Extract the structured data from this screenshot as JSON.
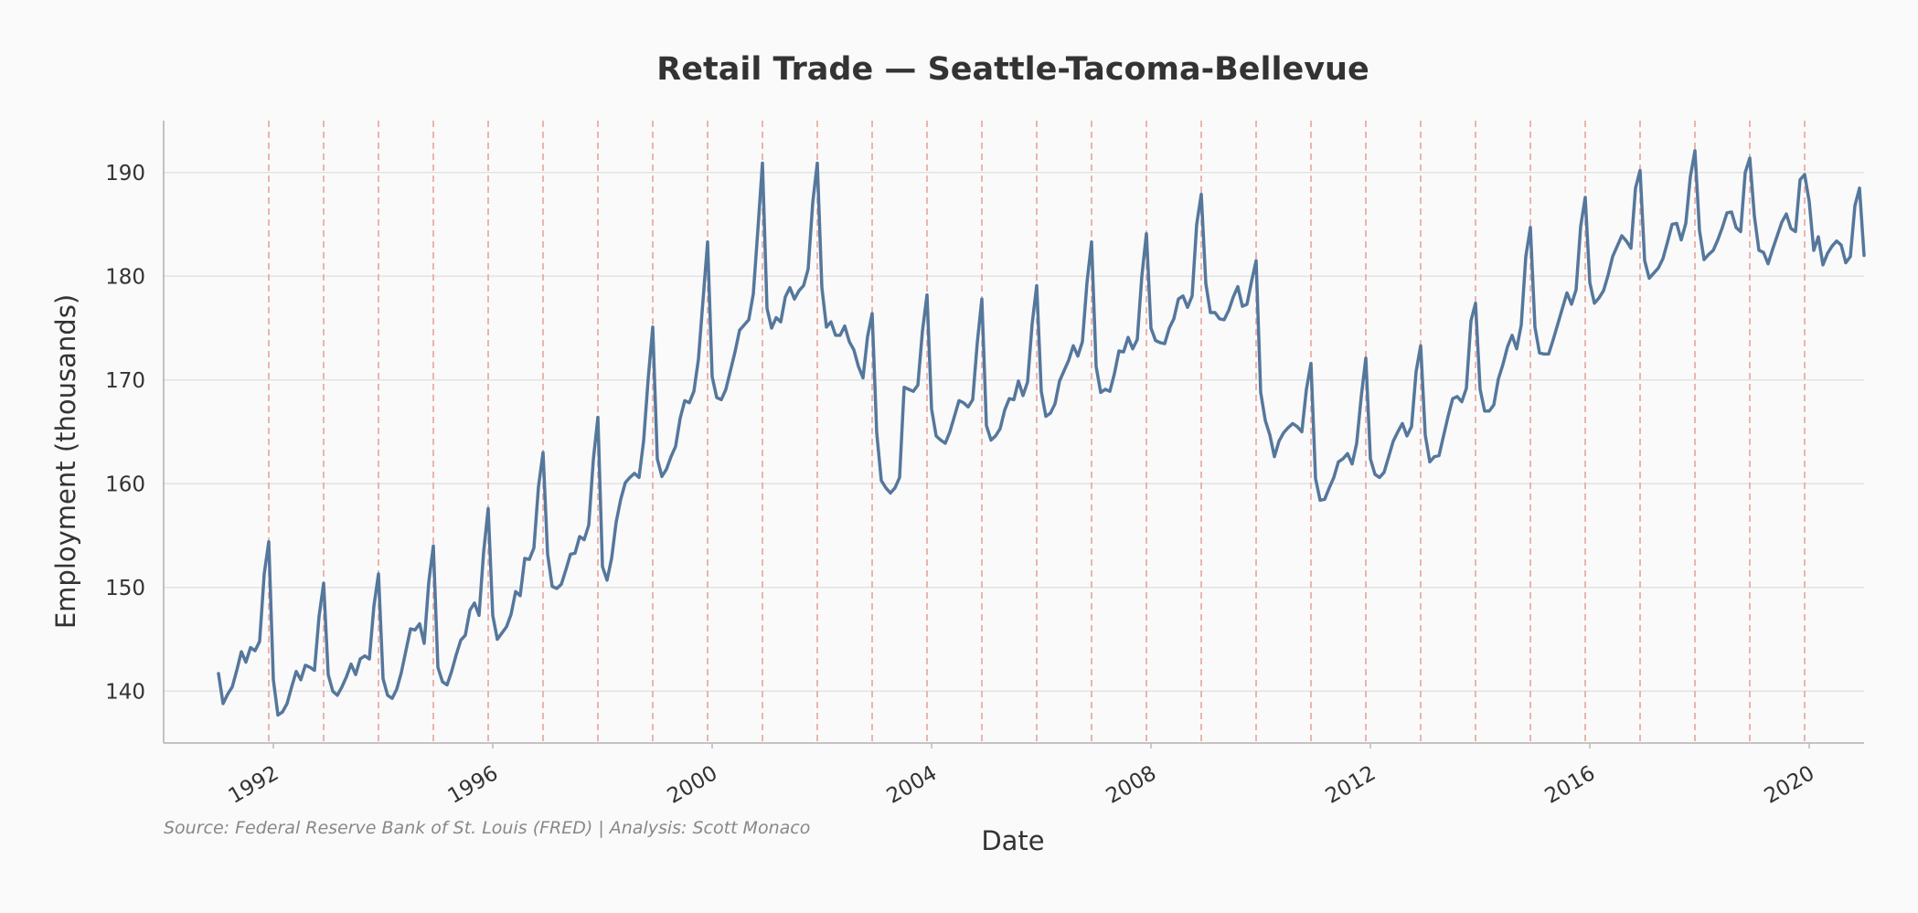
{
  "chart_data": {
    "type": "line",
    "title": "Retail Trade — Seattle-Tacoma-Bellevue",
    "xlabel": "Date",
    "ylabel": "Employment (thousands)",
    "source_note": "Source: Federal Reserve Bank of St. Louis (FRED) | Analysis: Scott Monaco",
    "xlim": [
      "1990-01",
      "2021-01"
    ],
    "ylim": [
      135,
      195
    ],
    "x_ticks": [
      "1992",
      "1996",
      "2000",
      "2004",
      "2008",
      "2012",
      "2016",
      "2020"
    ],
    "y_ticks": [
      "140",
      "150",
      "160",
      "170",
      "180",
      "190"
    ],
    "grid": "horizontal",
    "colors": {
      "line": "#55779c",
      "year_markers": "#e8a39c",
      "grid": "#e3e3e3",
      "axis": "#bbbbbb",
      "background": "#fafafa"
    },
    "year_marker_dates": [
      "1991-12",
      "1992-12",
      "1993-12",
      "1994-12",
      "1995-12",
      "1996-12",
      "1997-12",
      "1998-12",
      "1999-12",
      "2000-12",
      "2001-12",
      "2002-12",
      "2003-12",
      "2004-12",
      "2005-12",
      "2006-12",
      "2007-12",
      "2008-12",
      "2009-12",
      "2010-12",
      "2011-12",
      "2012-12",
      "2013-12",
      "2014-12",
      "2015-12",
      "2016-12",
      "2017-12",
      "2018-12",
      "2019-12"
    ],
    "series": [
      {
        "start": "1991-01",
        "frequency": "monthly",
        "values": [
          141.7,
          138.8,
          139.7,
          140.4,
          142.0,
          143.8,
          142.8,
          144.2,
          143.9,
          144.8,
          151.3,
          154.4,
          141.1,
          137.7,
          138.0,
          138.8,
          140.4,
          141.9,
          141.1,
          142.5,
          142.3,
          142.0,
          147.2,
          150.4,
          141.6,
          140.0,
          139.6,
          140.4,
          141.4,
          142.6,
          141.6,
          143.1,
          143.4,
          143.1,
          148.2,
          151.3,
          141.2,
          139.6,
          139.3,
          140.2,
          141.8,
          143.9,
          146.0,
          145.9,
          146.5,
          144.6,
          150.5,
          154.0,
          142.3,
          140.9,
          140.6,
          141.9,
          143.5,
          144.9,
          145.4,
          147.8,
          148.5,
          147.3,
          153.4,
          157.6,
          147.3,
          145.0,
          145.6,
          146.2,
          147.4,
          149.6,
          149.2,
          152.8,
          152.7,
          153.8,
          159.7,
          163.0,
          153.2,
          150.1,
          149.9,
          150.3,
          151.7,
          153.2,
          153.3,
          154.9,
          154.6,
          156.0,
          162.3,
          166.4,
          152.0,
          150.7,
          152.8,
          156.3,
          158.5,
          160.1,
          160.6,
          161.0,
          160.6,
          164.1,
          170.1,
          175.1,
          162.4,
          160.7,
          161.4,
          162.6,
          163.6,
          166.3,
          168.0,
          167.8,
          168.9,
          172.0,
          177.7,
          183.3,
          170.3,
          168.3,
          168.1,
          169.1,
          170.9,
          172.7,
          174.8,
          175.3,
          175.8,
          178.3,
          184.5,
          190.9,
          176.9,
          175.0,
          176.0,
          175.6,
          178.0,
          178.9,
          177.8,
          178.6,
          179.1,
          180.7,
          187.1,
          190.9,
          178.9,
          175.1,
          175.6,
          174.3,
          174.3,
          175.2,
          173.7,
          172.9,
          171.3,
          170.2,
          174.2,
          176.4,
          164.9,
          160.3,
          159.6,
          159.1,
          159.6,
          160.6,
          169.3,
          169.1,
          168.9,
          169.5,
          174.7,
          178.2,
          167.2,
          164.6,
          164.2,
          163.9,
          165.0,
          166.5,
          168.0,
          167.8,
          167.4,
          168.1,
          173.6,
          177.8,
          165.6,
          164.2,
          164.6,
          165.3,
          167.1,
          168.2,
          168.1,
          169.9,
          168.5,
          169.8,
          175.4,
          179.1,
          168.9,
          166.5,
          166.8,
          167.7,
          169.9,
          170.9,
          171.9,
          173.3,
          172.3,
          173.7,
          179.4,
          183.3,
          171.3,
          168.8,
          169.1,
          168.9,
          170.6,
          172.8,
          172.7,
          174.1,
          173.0,
          173.9,
          180.0,
          184.1,
          175.0,
          173.8,
          173.6,
          173.5,
          175.0,
          175.9,
          177.8,
          178.1,
          177.0,
          178.1,
          185.0,
          187.9,
          179.3,
          176.5,
          176.5,
          175.9,
          175.8,
          176.7,
          178.0,
          179.0,
          177.1,
          177.3,
          179.5,
          181.5,
          168.8,
          166.1,
          164.7,
          162.6,
          164.1,
          164.9,
          165.4,
          165.8,
          165.5,
          165.0,
          169.1,
          171.6,
          160.5,
          158.4,
          158.5,
          159.6,
          160.6,
          162.1,
          162.4,
          162.9,
          161.9,
          163.9,
          168.4,
          172.1,
          162.4,
          160.9,
          160.6,
          161.1,
          162.6,
          164.1,
          165.0,
          165.8,
          164.6,
          165.5,
          170.8,
          173.3,
          164.7,
          162.1,
          162.6,
          162.7,
          164.6,
          166.5,
          168.2,
          168.4,
          167.9,
          169.2,
          175.7,
          177.4,
          169.1,
          167.0,
          167.0,
          167.6,
          170.1,
          171.5,
          173.2,
          174.3,
          173.0,
          175.3,
          181.9,
          184.7,
          175.1,
          172.6,
          172.5,
          172.5,
          173.9,
          175.4,
          176.9,
          178.4,
          177.3,
          178.7,
          184.8,
          187.6,
          179.4,
          177.4,
          177.9,
          178.6,
          180.1,
          181.9,
          182.9,
          183.9,
          183.4,
          182.7,
          188.5,
          190.2,
          181.5,
          179.8,
          180.3,
          180.8,
          181.7,
          183.3,
          185.0,
          185.1,
          183.5,
          185.1,
          189.6,
          192.1,
          184.4,
          181.6,
          182.1,
          182.5,
          183.5,
          184.7,
          186.1,
          186.2,
          184.7,
          184.3,
          190.0,
          191.4,
          185.8,
          182.5,
          182.3,
          181.2,
          182.6,
          183.9,
          185.2,
          186.0,
          184.6,
          184.3,
          189.3,
          189.8,
          187.2,
          182.5,
          183.8,
          181.1,
          182.2,
          182.9,
          183.4,
          183.0,
          181.3,
          181.9,
          186.8,
          188.5,
          182.0
        ]
      }
    ]
  }
}
